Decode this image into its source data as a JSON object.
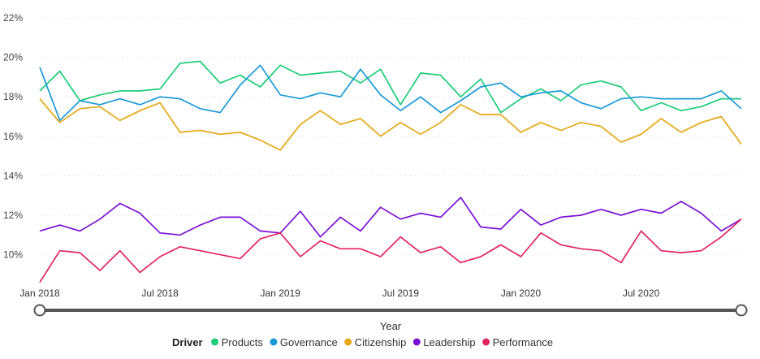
{
  "chart_data": {
    "type": "line",
    "title": "",
    "xlabel": "Year",
    "ylabel": "",
    "ylim": [
      8.5,
      22
    ],
    "yticks": [
      10,
      12,
      14,
      16,
      18,
      20,
      22
    ],
    "ytick_labels": [
      "10%",
      "12%",
      "14%",
      "16%",
      "18%",
      "20%",
      "22%"
    ],
    "x_tick_index": [
      0,
      6,
      12,
      18,
      24,
      30
    ],
    "x_tick_labels": [
      "Jan 2018",
      "Jul 2018",
      "Jan 2019",
      "Jul 2019",
      "Jan 2020",
      "Jul 2020"
    ],
    "x_range": [
      0,
      35
    ],
    "grid": true,
    "legend_title": "Driver",
    "legend_position": "bottom",
    "series": [
      {
        "name": "Products",
        "color": "#1ecc7a",
        "values": [
          18.3,
          19.3,
          17.8,
          18.1,
          18.3,
          18.3,
          18.4,
          19.7,
          19.8,
          18.7,
          19.1,
          18.5,
          19.6,
          19.1,
          19.2,
          19.3,
          18.7,
          19.4,
          17.6,
          19.2,
          19.1,
          18.0,
          18.9,
          17.2,
          17.9,
          18.4,
          17.8,
          18.6,
          18.8,
          18.5,
          17.3,
          17.7,
          17.3,
          17.5,
          17.9,
          17.9
        ]
      },
      {
        "name": "Governance",
        "color": "#1b9ad6",
        "values": [
          19.5,
          16.8,
          17.8,
          17.6,
          17.9,
          17.6,
          18.0,
          17.9,
          17.4,
          17.2,
          18.6,
          19.6,
          18.1,
          17.9,
          18.2,
          18.0,
          19.4,
          18.1,
          17.3,
          18.0,
          17.2,
          17.8,
          18.5,
          18.7,
          18.0,
          18.2,
          18.3,
          17.7,
          17.4,
          17.9,
          18.0,
          17.9,
          17.9,
          17.9,
          18.3,
          17.4
        ]
      },
      {
        "name": "Citizenship",
        "color": "#e3a817",
        "values": [
          17.9,
          16.7,
          17.4,
          17.5,
          16.8,
          17.3,
          17.7,
          16.2,
          16.3,
          16.1,
          16.2,
          15.8,
          15.3,
          16.6,
          17.3,
          16.6,
          16.9,
          16.0,
          16.7,
          16.1,
          16.7,
          17.6,
          17.1,
          17.1,
          16.2,
          16.7,
          16.3,
          16.7,
          16.5,
          15.7,
          16.1,
          16.9,
          16.2,
          16.7,
          17.0,
          15.6
        ]
      },
      {
        "name": "Leadership",
        "color": "#7a12d6",
        "values": [
          11.2,
          11.5,
          11.2,
          11.8,
          12.6,
          12.1,
          11.1,
          11.0,
          11.5,
          11.9,
          11.9,
          11.2,
          11.1,
          12.2,
          10.9,
          11.9,
          11.2,
          12.4,
          11.8,
          12.1,
          11.9,
          12.9,
          11.4,
          11.3,
          12.3,
          11.5,
          11.9,
          12.0,
          12.3,
          12.0,
          12.3,
          12.1,
          12.7,
          12.1,
          11.2,
          11.8
        ]
      },
      {
        "name": "Performance",
        "color": "#e0245e",
        "values": [
          8.6,
          10.2,
          10.1,
          9.2,
          10.2,
          9.1,
          9.9,
          10.4,
          10.2,
          10.0,
          9.8,
          10.8,
          11.1,
          9.9,
          10.7,
          10.3,
          10.3,
          9.9,
          10.9,
          10.1,
          10.4,
          9.6,
          9.9,
          10.5,
          9.9,
          11.1,
          10.5,
          10.3,
          10.2,
          9.6,
          11.2,
          10.2,
          10.1,
          10.2,
          10.9,
          11.8
        ]
      }
    ]
  }
}
